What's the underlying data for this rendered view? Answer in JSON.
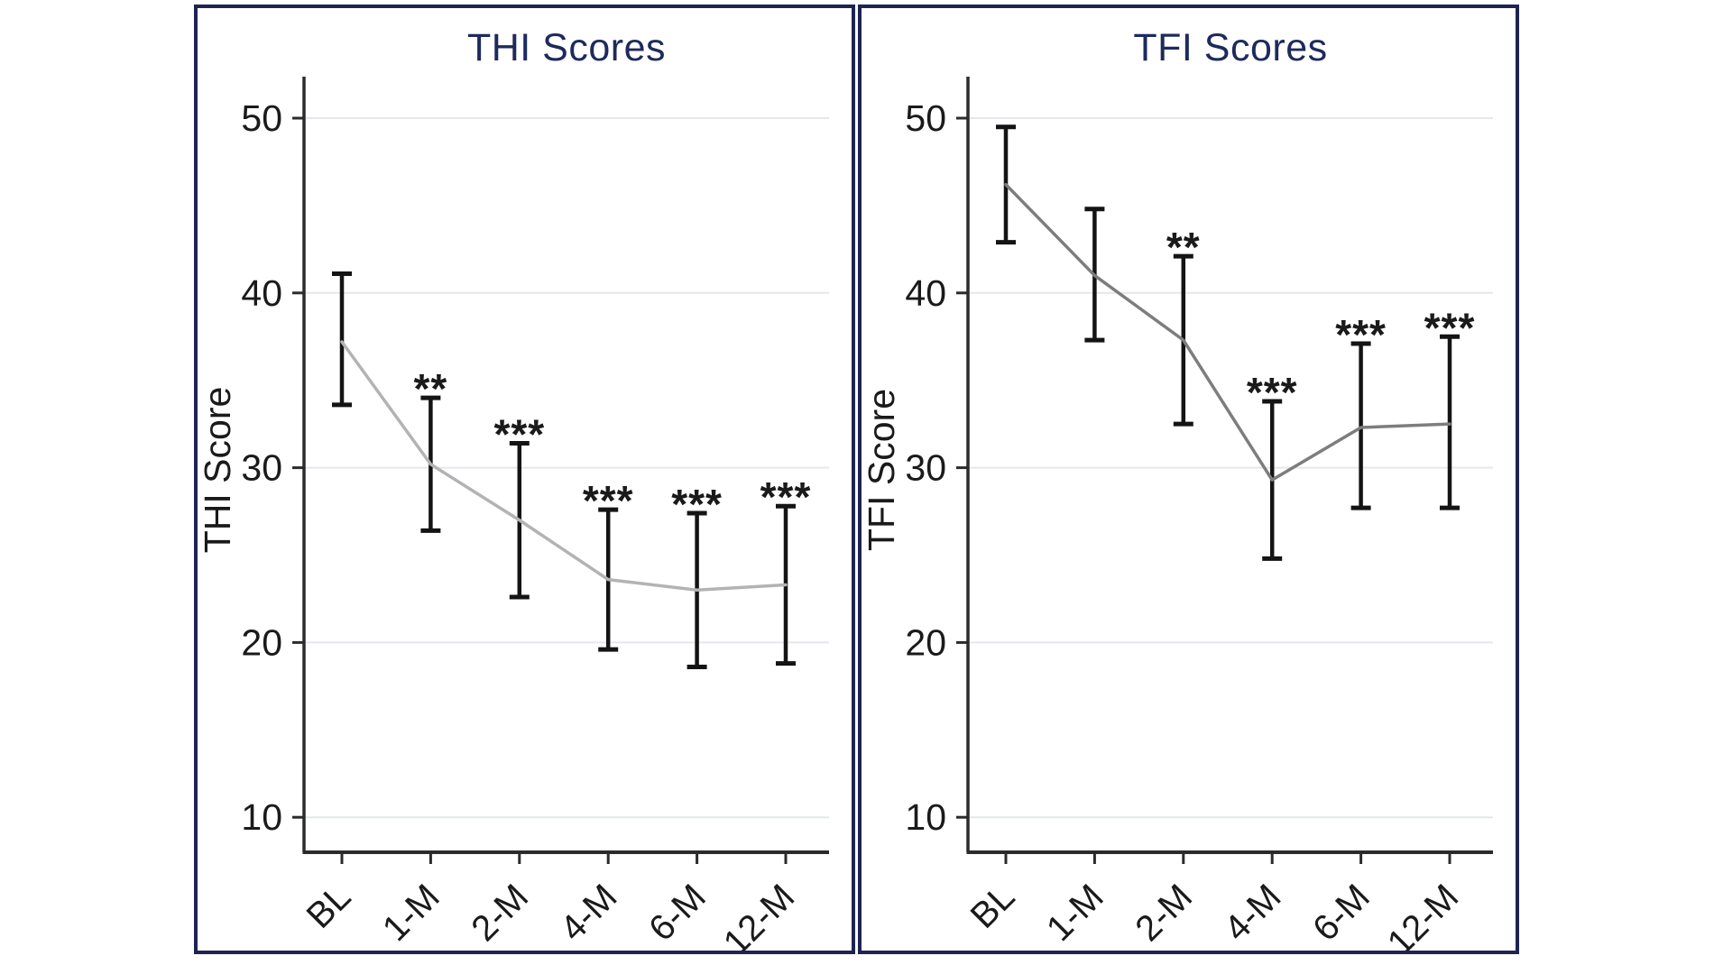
{
  "colors": {
    "panel_border": "#1e2451",
    "title": "#1d2a5c",
    "axis": "#2b2b2b",
    "grid": "#e4e8ec",
    "error_bar": "#141414",
    "tick_text": "#1a1a1a",
    "thi_line": "#b3b3b3",
    "tfi_line": "#7d7d7d"
  },
  "chart_data": [
    {
      "type": "line",
      "title": "THI Scores",
      "ylabel": "THI Score",
      "xlabel": "",
      "categories": [
        "BL",
        "1-M",
        "2-M",
        "4-M",
        "6-M",
        "12-M"
      ],
      "series": [
        {
          "name": "THI mean",
          "values": [
            37.2,
            30.2,
            27.0,
            23.6,
            23.0,
            23.3
          ]
        }
      ],
      "error_low": [
        33.6,
        26.4,
        22.6,
        19.6,
        18.6,
        18.8
      ],
      "error_high": [
        41.1,
        34.0,
        31.4,
        27.6,
        27.4,
        27.8
      ],
      "significance": [
        "",
        "**",
        "***",
        "***",
        "***",
        "***"
      ],
      "yticks": [
        10,
        20,
        30,
        40,
        50
      ],
      "ylim": [
        8,
        52.5
      ],
      "grid": true,
      "legend": "none",
      "line_color": "#b3b3b3"
    },
    {
      "type": "line",
      "title": "TFI Scores",
      "ylabel": "TFI Score",
      "xlabel": "",
      "categories": [
        "BL",
        "1-M",
        "2-M",
        "4-M",
        "6-M",
        "12-M"
      ],
      "series": [
        {
          "name": "TFI mean",
          "values": [
            46.2,
            41.0,
            37.3,
            29.3,
            32.3,
            32.5
          ]
        }
      ],
      "error_low": [
        42.9,
        37.3,
        32.5,
        24.8,
        27.7,
        27.7
      ],
      "error_high": [
        49.5,
        44.8,
        42.1,
        33.8,
        37.1,
        37.5
      ],
      "significance": [
        "",
        "",
        "**",
        "***",
        "***",
        "***"
      ],
      "yticks": [
        10,
        20,
        30,
        40,
        50
      ],
      "ylim": [
        8,
        52.5
      ],
      "grid": true,
      "legend": "none",
      "line_color": "#7d7d7d"
    }
  ]
}
